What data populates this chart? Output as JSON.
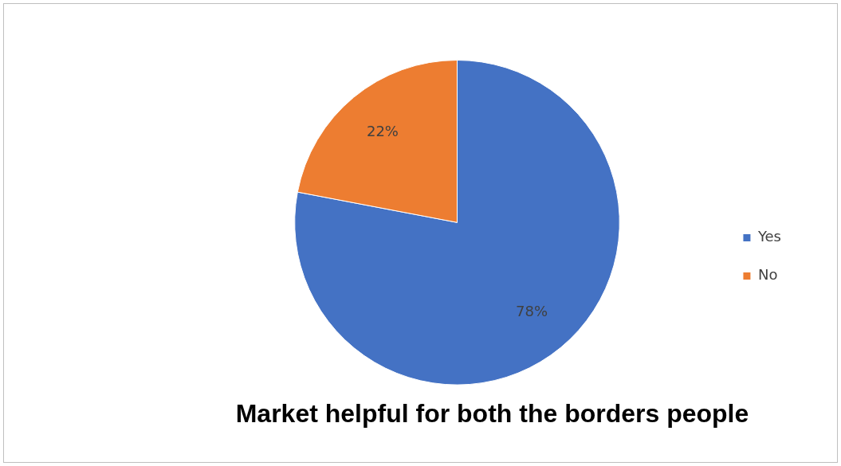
{
  "chart_data": {
    "type": "pie",
    "title": "Market helpful for both the borders people",
    "categories": [
      "Yes",
      "No"
    ],
    "values": [
      78,
      22
    ],
    "colors": [
      "#4472c4",
      "#ed7d31"
    ],
    "value_labels": [
      "78%",
      "22%"
    ],
    "legend": "right"
  }
}
